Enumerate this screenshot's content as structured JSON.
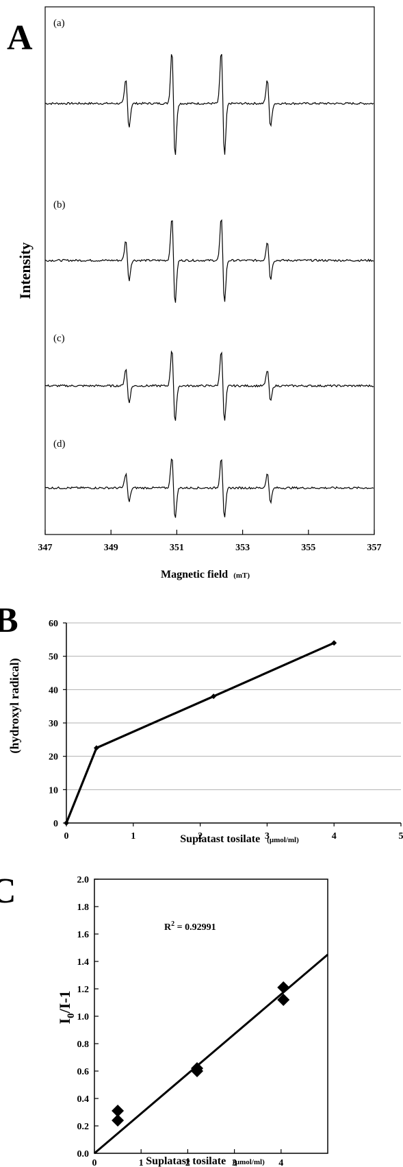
{
  "chart_data": [
    {
      "panel": "A",
      "type": "line",
      "xlabel": "Magnetic field",
      "xunit": "(mT)",
      "ylabel": "Intensity",
      "xlim": [
        347,
        357
      ],
      "xticks": [
        "347",
        "349",
        "351",
        "353",
        "355",
        "357"
      ],
      "peaks_mT": [
        349.5,
        350.9,
        352.4,
        353.8
      ],
      "series": [
        {
          "label": "(a)",
          "amplitudes": [
            0.45,
            1.0,
            1.0,
            0.45
          ]
        },
        {
          "label": "(b)",
          "amplitudes": [
            0.38,
            0.82,
            0.8,
            0.36
          ]
        },
        {
          "label": "(c)",
          "amplitudes": [
            0.32,
            0.7,
            0.68,
            0.3
          ]
        },
        {
          "label": "(d)",
          "amplitudes": [
            0.27,
            0.6,
            0.58,
            0.27
          ]
        }
      ]
    },
    {
      "panel": "B",
      "type": "line",
      "xlabel": "Suplatast tosilate",
      "xunit": "(μmol/ml)",
      "ylabel": "(hydroxyl radical)",
      "xlim": [
        0,
        5
      ],
      "ylim": [
        0,
        60
      ],
      "xticks": [
        "0",
        "1",
        "2",
        "3",
        "4",
        "5"
      ],
      "yticks": [
        "0",
        "10",
        "20",
        "30",
        "40",
        "50",
        "60"
      ],
      "grid": true,
      "x": [
        0,
        0.45,
        2.2,
        4.0
      ],
      "y": [
        0,
        22.5,
        38,
        54
      ]
    },
    {
      "panel": "C",
      "type": "scatter",
      "xlabel": "Suplatast tosilate",
      "xunit": "(μmol/ml)",
      "ylabel_main": "I",
      "ylabel_sub": "0",
      "ylabel_rest": "/I-1",
      "xlim": [
        0,
        5
      ],
      "ylim": [
        0,
        2.0
      ],
      "xticks": [
        "0",
        "1",
        "2",
        "3",
        "4"
      ],
      "yticks": [
        "0.0",
        "0.2",
        "0.4",
        "0.6",
        "0.8",
        "1.0",
        "1.2",
        "1.4",
        "1.6",
        "1.8",
        "2.0"
      ],
      "annotation": "R",
      "annotation_sup": "2",
      "annotation_rest": " = 0.92991",
      "points": [
        {
          "x": 0.5,
          "y": 0.31
        },
        {
          "x": 0.5,
          "y": 0.24
        },
        {
          "x": 2.2,
          "y": 0.62
        },
        {
          "x": 2.2,
          "y": 0.6
        },
        {
          "x": 4.05,
          "y": 1.21
        },
        {
          "x": 4.05,
          "y": 1.12
        }
      ],
      "fit_line": {
        "x": [
          0,
          5
        ],
        "y": [
          0,
          1.45
        ]
      }
    }
  ]
}
